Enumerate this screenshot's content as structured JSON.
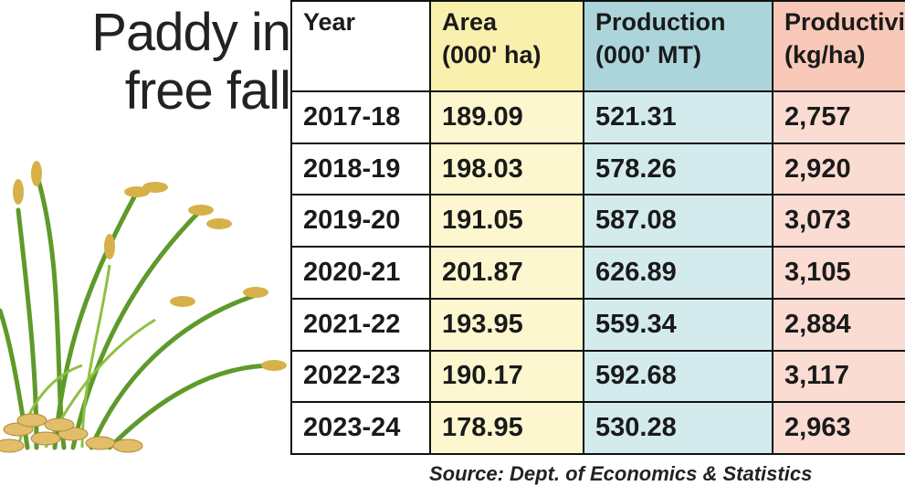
{
  "title": [
    "Paddy in",
    "free fall"
  ],
  "table": {
    "headers": [
      {
        "label": "Year"
      },
      {
        "label": "Area",
        "unit": "(000' ha)"
      },
      {
        "label": "Production",
        "unit": "(000' MT)"
      },
      {
        "label": "Productivity",
        "unit": "(kg/ha)"
      }
    ],
    "rows": [
      [
        "2017-18",
        "189.09",
        "521.31",
        "2,757"
      ],
      [
        "2018-19",
        "198.03",
        "578.26",
        "2,920"
      ],
      [
        "2019-20",
        "191.05",
        "587.08",
        "3,073"
      ],
      [
        "2020-21",
        "201.87",
        "626.89",
        "3,105"
      ],
      [
        "2021-22",
        "193.95",
        "559.34",
        "2,884"
      ],
      [
        "2022-23",
        "190.17",
        "592.68",
        "3,117"
      ],
      [
        "2023-24",
        "178.95",
        "530.28",
        "2,963"
      ]
    ]
  },
  "source": "Source: Dept. of Economics & Statistics"
}
